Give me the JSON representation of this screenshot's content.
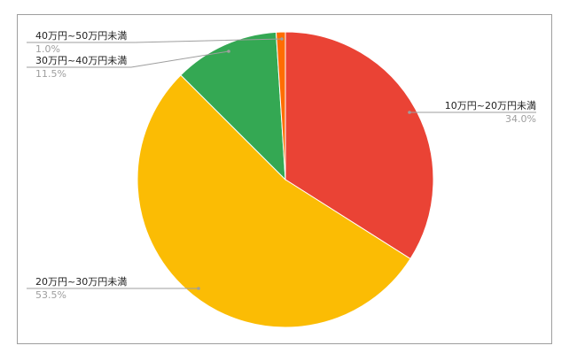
{
  "chart_data": {
    "type": "pie",
    "title": "",
    "start_angle_deg": 0,
    "direction": "clockwise",
    "legend": "none",
    "slices": [
      {
        "label": "10万円~20万円未満",
        "value": 34.0,
        "value_label": "34.0%",
        "color": "#ea4335"
      },
      {
        "label": "20万円~30万円未満",
        "value": 53.5,
        "value_label": "53.5%",
        "color": "#fbbc04"
      },
      {
        "label": "30万円~40万円未満",
        "value": 11.5,
        "value_label": "11.5%",
        "color": "#34a853"
      },
      {
        "label": "40万円~50万円未満",
        "value": 1.0,
        "value_label": "1.0%",
        "color": "#ff6d01"
      }
    ]
  }
}
